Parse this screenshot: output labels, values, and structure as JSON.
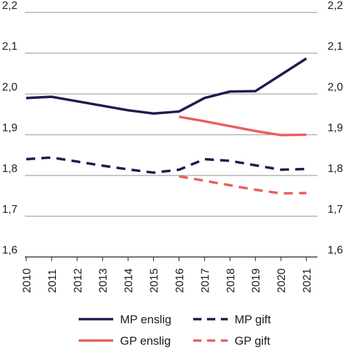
{
  "chart_data": {
    "type": "line",
    "title": "",
    "xlabel": "",
    "ylabel": "",
    "x": [
      2010,
      2011,
      2012,
      2013,
      2014,
      2015,
      2016,
      2017,
      2018,
      2019,
      2020,
      2021
    ],
    "x_tick_labels": [
      "2010",
      "2011",
      "2012",
      "2013",
      "2014",
      "2015",
      "2016",
      "2017",
      "2018",
      "2019",
      "2020",
      "2021"
    ],
    "ylim": [
      1.6,
      2.2
    ],
    "y_ticks": [
      1.6,
      1.7,
      1.8,
      1.9,
      2.0,
      2.1,
      2.2
    ],
    "y_tick_labels": [
      "1,6",
      "1,7",
      "1,8",
      "1,9",
      "2,0",
      "2,1",
      "2,2"
    ],
    "y_axis_both_sides": true,
    "grid": "horizontal",
    "legend_position": "bottom",
    "series": [
      {
        "name": "MP enslig",
        "color": "#1c1d4f",
        "dashed": false,
        "values": [
          1.99,
          1.993,
          1.982,
          1.971,
          1.96,
          1.952,
          1.957,
          1.99,
          2.006,
          2.007,
          2.047,
          2.087
        ]
      },
      {
        "name": "MP gift",
        "color": "#1c1d4f",
        "dashed": true,
        "values": [
          1.84,
          1.844,
          1.834,
          1.824,
          1.815,
          1.807,
          1.814,
          1.84,
          1.836,
          1.825,
          1.814,
          1.816
        ]
      },
      {
        "name": "GP enslig",
        "color": "#e8605f",
        "dashed": false,
        "values": [
          null,
          null,
          null,
          null,
          null,
          null,
          1.944,
          1.933,
          1.921,
          1.909,
          1.899,
          1.9
        ]
      },
      {
        "name": "GP gift",
        "color": "#e8605f",
        "dashed": true,
        "values": [
          null,
          null,
          null,
          null,
          null,
          null,
          1.798,
          1.787,
          1.776,
          1.765,
          1.756,
          1.757
        ]
      }
    ]
  }
}
